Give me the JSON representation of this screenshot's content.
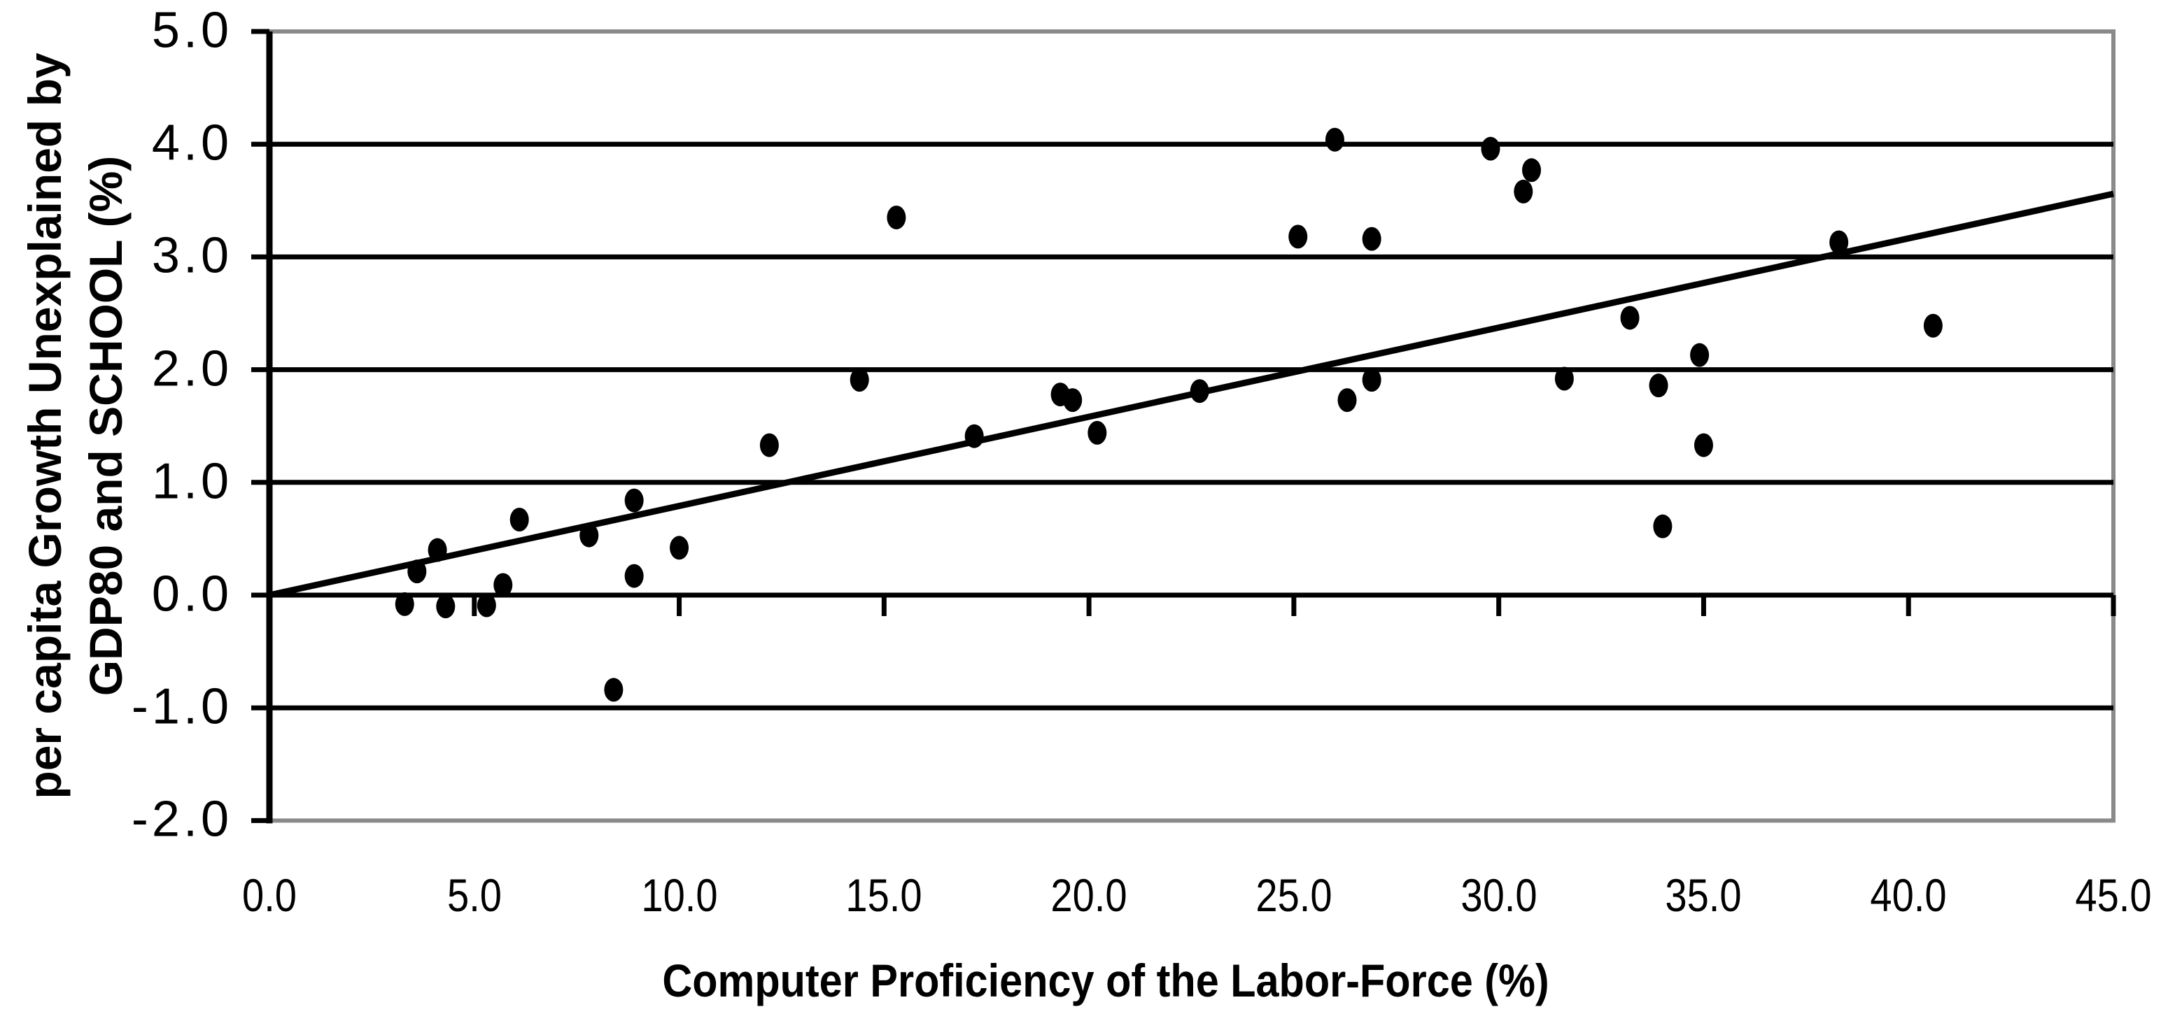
{
  "chart_data": {
    "type": "scatter",
    "title": "",
    "xlabel": "Computer Proficiency of the Labor-Force (%)",
    "ylabel_line1": "per capita Growth Unexplained by",
    "ylabel_line2": "GDP80 and SCHOOL (%)",
    "xlim": [
      0.0,
      45.0
    ],
    "ylim": [
      -2.0,
      5.0
    ],
    "x_tick_labels": [
      "0.0",
      "5.0",
      "10.0",
      "15.0",
      "20.0",
      "25.0",
      "30.0",
      "35.0",
      "40.0",
      "45.0"
    ],
    "x_tick_values": [
      0,
      5,
      10,
      15,
      20,
      25,
      30,
      35,
      40,
      45
    ],
    "y_tick_labels": [
      "5.0",
      "4.0",
      "3.0",
      "2.0",
      "1.0",
      "0.0",
      "-1.0",
      "-2.0"
    ],
    "y_tick_values": [
      5,
      4,
      3,
      2,
      1,
      0,
      -1,
      -2
    ],
    "gridline_values": [
      4,
      3,
      2,
      1,
      0,
      -1
    ],
    "grid": "horizontal",
    "legend": "none",
    "points": [
      [
        3.3,
        -0.08
      ],
      [
        3.6,
        0.21
      ],
      [
        4.1,
        0.4
      ],
      [
        4.3,
        -0.1
      ],
      [
        5.3,
        -0.09
      ],
      [
        5.7,
        0.09
      ],
      [
        6.1,
        0.67
      ],
      [
        7.8,
        0.53
      ],
      [
        8.4,
        -0.84
      ],
      [
        8.9,
        0.84
      ],
      [
        8.9,
        0.17
      ],
      [
        10.0,
        0.42
      ],
      [
        12.2,
        1.33
      ],
      [
        14.4,
        1.91
      ],
      [
        15.3,
        3.35
      ],
      [
        17.2,
        1.41
      ],
      [
        19.3,
        1.78
      ],
      [
        19.6,
        1.73
      ],
      [
        20.2,
        1.44
      ],
      [
        22.7,
        1.81
      ],
      [
        25.1,
        3.18
      ],
      [
        26.0,
        4.04
      ],
      [
        26.3,
        1.73
      ],
      [
        26.9,
        3.16
      ],
      [
        26.9,
        1.91
      ],
      [
        29.8,
        3.96
      ],
      [
        30.6,
        3.58
      ],
      [
        30.8,
        3.77
      ],
      [
        31.6,
        1.92
      ],
      [
        33.2,
        2.46
      ],
      [
        33.9,
        1.86
      ],
      [
        34.0,
        0.61
      ],
      [
        34.9,
        2.13
      ],
      [
        35.0,
        1.33
      ],
      [
        38.3,
        3.13
      ],
      [
        40.6,
        2.39
      ]
    ],
    "trendline": {
      "x1": 0.0,
      "y1": 0.0,
      "x2": 45.0,
      "y2": 3.56
    },
    "colors": {
      "marker": "#000000",
      "gridline": "#000000",
      "axis": "#000000",
      "plot_border": "#8a8a8a",
      "trendline": "#000000",
      "text": "#000000",
      "background": "#ffffff"
    }
  }
}
